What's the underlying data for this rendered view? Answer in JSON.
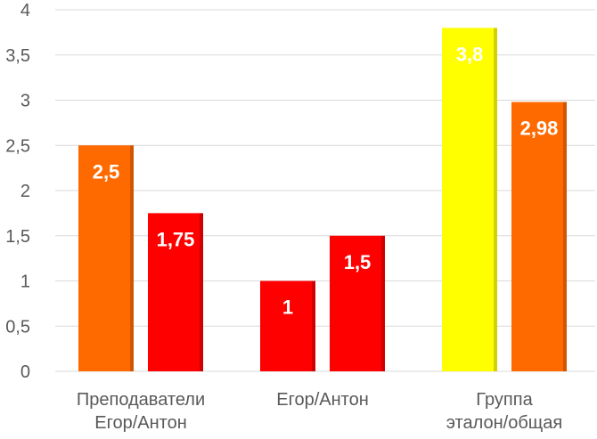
{
  "chart_data": {
    "type": "bar",
    "categories": [
      [
        "Преподаватели",
        "Егор/Антон"
      ],
      [
        "Егор/Антон"
      ],
      [
        "Группа",
        "эталон/общая"
      ]
    ],
    "bars": [
      {
        "category": 0,
        "value": 2.5,
        "label": "2,5",
        "color": "#FF6A00"
      },
      {
        "category": 0,
        "value": 1.75,
        "label": "1,75",
        "color": "#FF0000"
      },
      {
        "category": 1,
        "value": 1.0,
        "label": "1",
        "color": "#FF0000"
      },
      {
        "category": 1,
        "value": 1.5,
        "label": "1,5",
        "color": "#FF0000"
      },
      {
        "category": 2,
        "value": 3.8,
        "label": "3,8",
        "color": "#FFFF00"
      },
      {
        "category": 2,
        "value": 2.98,
        "label": "2,98",
        "color": "#FF6A00"
      }
    ],
    "yticks": [
      {
        "value": 0,
        "label": "0"
      },
      {
        "value": 0.5,
        "label": "0,5"
      },
      {
        "value": 1,
        "label": "1"
      },
      {
        "value": 1.5,
        "label": "1,5"
      },
      {
        "value": 2,
        "label": "2"
      },
      {
        "value": 2.5,
        "label": "2,5"
      },
      {
        "value": 3,
        "label": "3"
      },
      {
        "value": 3.5,
        "label": "3,5"
      },
      {
        "value": 4,
        "label": "4"
      }
    ],
    "ylim": [
      0,
      4
    ],
    "grid": true,
    "title": "",
    "xlabel": "",
    "ylabel": "",
    "colors": {
      "grid": "#D9D9D9",
      "axis_text": "#595959",
      "data_label": "#FFFFFF"
    }
  }
}
